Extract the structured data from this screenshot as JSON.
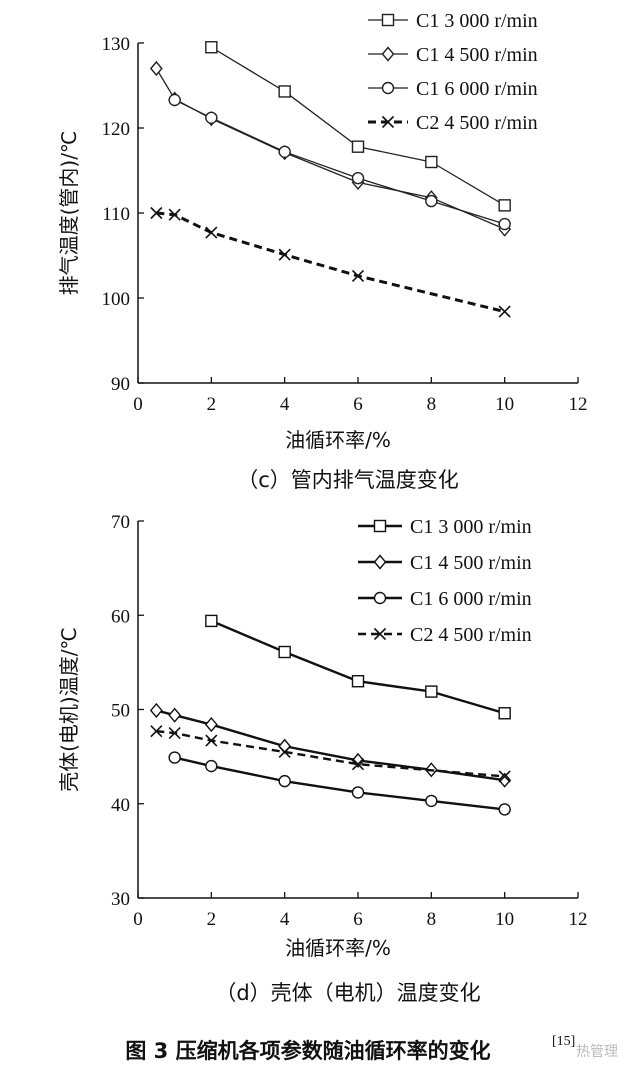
{
  "figure_caption": "图 3 压缩机各项参数随油循环率的变化",
  "figure_ref": "[15]",
  "watermark": "热管理",
  "chart_data": [
    {
      "type": "line",
      "caption": "（c）管内排气温度变化",
      "xlabel": "油循环率/%",
      "ylabel": "排气温度(管内)/℃",
      "xlim": [
        0,
        12
      ],
      "ylim": [
        90,
        130
      ],
      "xticks": [
        "0",
        "2",
        "4",
        "6",
        "8",
        "10",
        "12"
      ],
      "yticks": [
        "90",
        "100",
        "110",
        "120",
        "130"
      ],
      "legend_position": "top-right",
      "series": [
        {
          "name": "C1 3 000 r/min",
          "marker": "square",
          "dashed": false,
          "color": "#222222",
          "x": [
            2,
            4,
            6,
            8,
            10
          ],
          "y": [
            129.5,
            124.3,
            117.8,
            116.0,
            110.9
          ]
        },
        {
          "name": "C1 4 500 r/min",
          "marker": "diamond",
          "dashed": false,
          "color": "#222222",
          "x": [
            0.5,
            1,
            2,
            4,
            6,
            8,
            10
          ],
          "y": [
            127.0,
            123.4,
            121.1,
            117.1,
            113.6,
            111.8,
            108.1
          ]
        },
        {
          "name": "C1 6 000 r/min",
          "marker": "circle",
          "dashed": false,
          "color": "#222222",
          "x": [
            1,
            2,
            4,
            6,
            8,
            10
          ],
          "y": [
            123.3,
            121.2,
            117.2,
            114.1,
            111.4,
            108.7
          ]
        },
        {
          "name": "C2 4 500 r/min",
          "marker": "cross",
          "dashed": true,
          "color": "#111111",
          "x": [
            0.5,
            1,
            2,
            4,
            6,
            10
          ],
          "y": [
            110.0,
            109.8,
            107.7,
            105.1,
            102.6,
            98.4
          ]
        }
      ]
    },
    {
      "type": "line",
      "caption": "（d）壳体（电机）温度变化",
      "xlabel": "油循环率/%",
      "ylabel": "壳体(电机)温度/℃",
      "xlim": [
        0,
        12
      ],
      "ylim": [
        30,
        70
      ],
      "xticks": [
        "0",
        "2",
        "4",
        "6",
        "8",
        "10",
        "12"
      ],
      "yticks": [
        "30",
        "40",
        "50",
        "60",
        "70"
      ],
      "legend_position": "top-right",
      "series": [
        {
          "name": "C1 3 000 r/min",
          "marker": "square",
          "dashed": false,
          "color": "#111111",
          "x": [
            2,
            4,
            6,
            8,
            10
          ],
          "y": [
            59.4,
            56.1,
            53.0,
            51.9,
            49.6
          ]
        },
        {
          "name": "C1 4 500 r/min",
          "marker": "diamond",
          "dashed": false,
          "color": "#111111",
          "x": [
            0.5,
            1,
            2,
            4,
            6,
            8,
            10
          ],
          "y": [
            49.9,
            49.4,
            48.4,
            46.1,
            44.6,
            43.6,
            42.5
          ]
        },
        {
          "name": "C1 6 000 r/min",
          "marker": "circle",
          "dashed": false,
          "color": "#111111",
          "x": [
            1,
            2,
            4,
            6,
            8,
            10
          ],
          "y": [
            44.9,
            44.0,
            42.4,
            41.2,
            40.3,
            39.4
          ]
        },
        {
          "name": "C2 4 500 r/min",
          "marker": "cross",
          "dashed": true,
          "color": "#111111",
          "x": [
            0.5,
            1,
            2,
            4,
            6,
            10
          ],
          "y": [
            47.7,
            47.5,
            46.7,
            45.5,
            44.2,
            42.9
          ]
        }
      ]
    }
  ]
}
